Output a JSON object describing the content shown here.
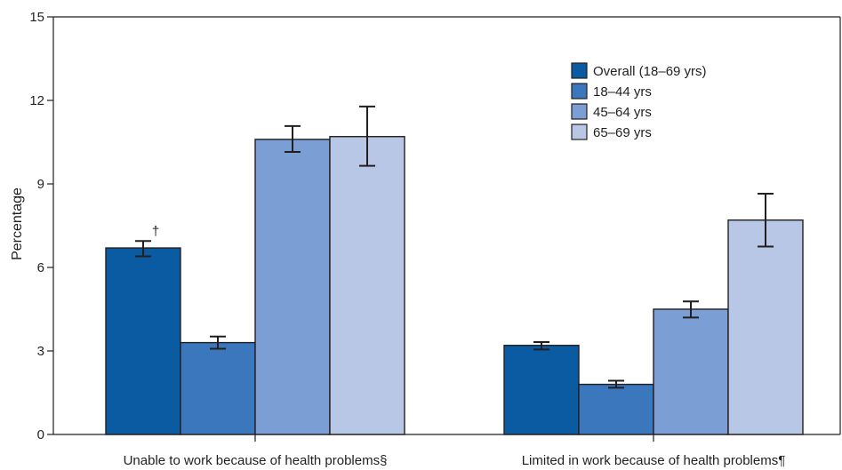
{
  "chart_data": {
    "type": "bar",
    "ylabel": "Percentage",
    "xlabel": "",
    "ylim": [
      0,
      15
    ],
    "yticks": [
      "0",
      "3",
      "6",
      "9",
      "12",
      "15"
    ],
    "categories": [
      "Unable to work because of health problems§",
      "Limited in work because of health problems¶"
    ],
    "series": [
      {
        "name": "Overall (18–69 yrs)",
        "color": "#0b5ba3",
        "values": [
          6.7,
          3.2
        ],
        "ci_low": [
          6.4,
          3.05
        ],
        "ci_high": [
          6.95,
          3.32
        ]
      },
      {
        "name": "18–44 yrs",
        "color": "#3b77bd",
        "values": [
          3.3,
          1.8
        ],
        "ci_low": [
          3.08,
          1.68
        ],
        "ci_high": [
          3.52,
          1.93
        ]
      },
      {
        "name": "45–64 yrs",
        "color": "#7b9fd4",
        "values": [
          10.6,
          4.5
        ],
        "ci_low": [
          10.15,
          4.2
        ],
        "ci_high": [
          11.08,
          4.78
        ]
      },
      {
        "name": "65–69 yrs",
        "color": "#b7c7e5",
        "values": [
          10.7,
          7.7
        ],
        "ci_low": [
          9.65,
          6.75
        ],
        "ci_high": [
          11.78,
          8.65
        ]
      }
    ],
    "annotations": [
      {
        "text": "†",
        "series": 0,
        "category": 0
      }
    ],
    "legend": "top-right",
    "grid": false,
    "error_bars": true
  }
}
